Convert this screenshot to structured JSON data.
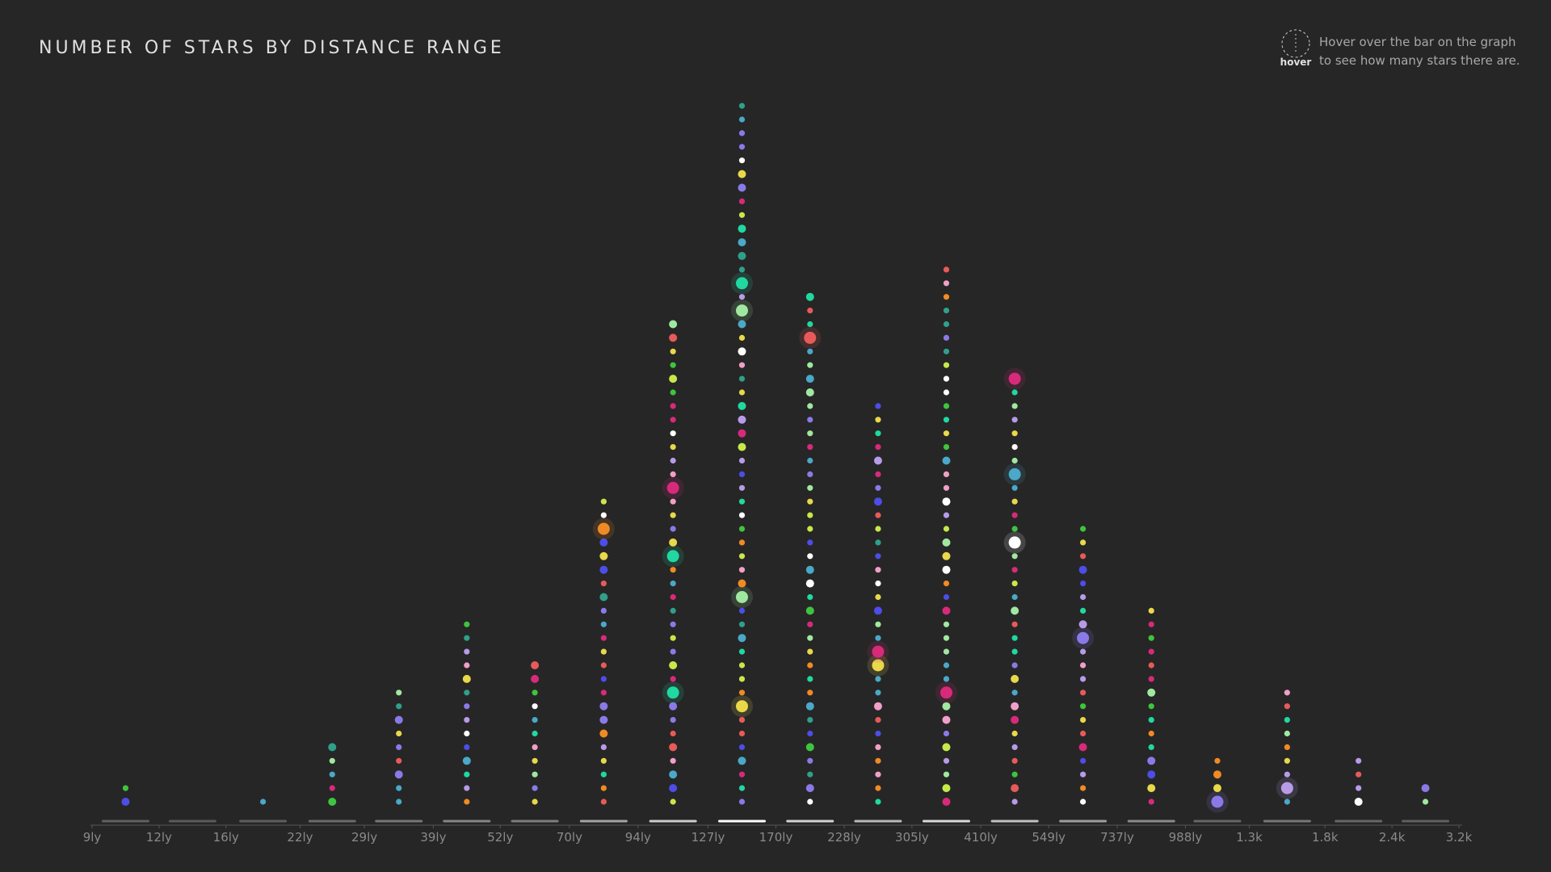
{
  "chart_data": {
    "type": "histogram",
    "title": "NUMBER OF STARS BY DISTANCE RANGE",
    "hint": {
      "label": "hover",
      "lines": [
        "Hover over the bar on the graph",
        "to see how many stars there are."
      ]
    },
    "bins": [
      {
        "value": 9,
        "label": "9ly"
      },
      {
        "value": 12,
        "label": "12ly"
      },
      {
        "value": 16,
        "label": "16ly"
      },
      {
        "value": 22,
        "label": "22ly"
      },
      {
        "value": 29,
        "label": "29ly"
      },
      {
        "value": 39,
        "label": "39ly"
      },
      {
        "value": 52,
        "label": "52ly"
      },
      {
        "value": 70,
        "label": "70ly"
      },
      {
        "value": 94,
        "label": "94ly"
      },
      {
        "value": 127,
        "label": "127ly"
      },
      {
        "value": 170,
        "label": "170ly"
      },
      {
        "value": 228,
        "label": "228ly"
      },
      {
        "value": 305,
        "label": "305ly"
      },
      {
        "value": 410,
        "label": "410ly"
      },
      {
        "value": 549,
        "label": "549ly"
      },
      {
        "value": 737,
        "label": "737ly"
      },
      {
        "value": 988,
        "label": "988ly"
      },
      {
        "value": 1300,
        "label": "1.3k"
      },
      {
        "value": 1800,
        "label": "1.8k"
      },
      {
        "value": 2400,
        "label": "2.4k"
      },
      {
        "value": 3200,
        "label": "3.2k"
      }
    ],
    "values": [
      2,
      0,
      1,
      5,
      9,
      14,
      11,
      23,
      36,
      52,
      38,
      30,
      40,
      32,
      21,
      15,
      4,
      9,
      4,
      2
    ],
    "xscale": "log",
    "xlim": [
      9,
      3200
    ],
    "palette": [
      "#4d4de8",
      "#e85a5a",
      "#f08a24",
      "#c8e84a",
      "#3fc43f",
      "#2fa08a",
      "#b79be8",
      "#f0a0c8",
      "#ffffff",
      "#e8d84a",
      "#4aa8c8",
      "#d82a7a",
      "#a0e8a0",
      "#8a7ae8",
      "#20d8a0"
    ]
  }
}
